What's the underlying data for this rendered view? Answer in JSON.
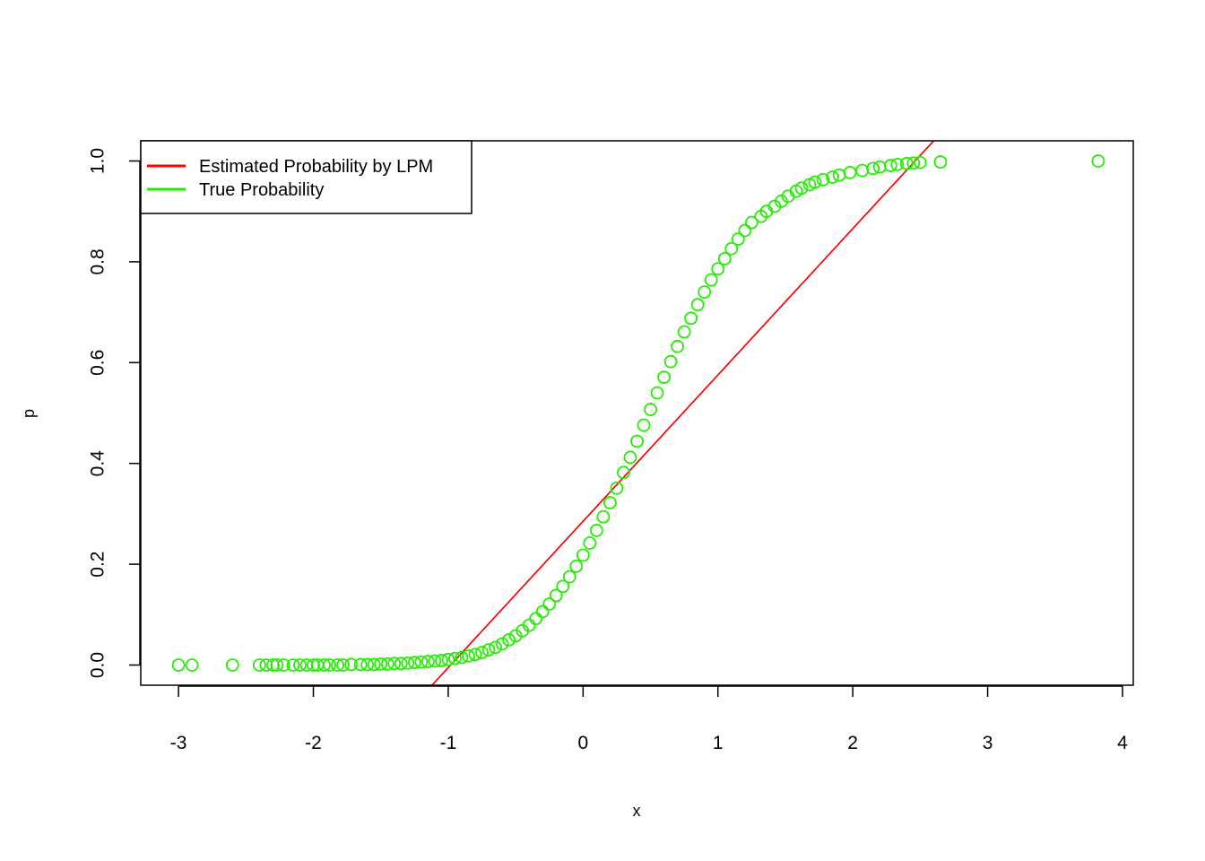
{
  "chart_data": {
    "type": "scatter",
    "title": "",
    "xlabel": "x",
    "ylabel": "p",
    "xlim": [
      -3.28,
      4.08
    ],
    "ylim": [
      -0.04,
      1.04
    ],
    "xticks": [
      -3,
      -2,
      -1,
      0,
      1,
      2,
      3,
      4
    ],
    "yticks": [
      0.0,
      0.2,
      0.4,
      0.6,
      0.8,
      1.0
    ],
    "xtick_labels": [
      "-3",
      "-2",
      "-1",
      "0",
      "1",
      "2",
      "3",
      "4"
    ],
    "ytick_labels": [
      "0.0",
      "0.2",
      "0.4",
      "0.6",
      "0.8",
      "1.0"
    ],
    "grid": false,
    "legend": {
      "position": "top-left",
      "items": [
        {
          "label": "Estimated Probability by LPM",
          "color": "#ff0000"
        },
        {
          "label": "True Probability",
          "color": "#22ee00"
        }
      ]
    },
    "series": [
      {
        "name": "True Probability",
        "kind": "scatter",
        "color": "#22ee00",
        "marker": "circle-open",
        "x": [
          -3.0,
          -2.9,
          -2.6,
          -2.4,
          -2.35,
          -2.3,
          -2.27,
          -2.22,
          -2.15,
          -2.1,
          -2.05,
          -2.0,
          -1.97,
          -1.92,
          -1.88,
          -1.82,
          -1.78,
          -1.72,
          -1.65,
          -1.6,
          -1.55,
          -1.5,
          -1.45,
          -1.4,
          -1.35,
          -1.3,
          -1.25,
          -1.2,
          -1.15,
          -1.1,
          -1.05,
          -1.0,
          -0.95,
          -0.9,
          -0.85,
          -0.8,
          -0.75,
          -0.7,
          -0.65,
          -0.6,
          -0.55,
          -0.5,
          -0.45,
          -0.4,
          -0.35,
          -0.3,
          -0.25,
          -0.2,
          -0.15,
          -0.1,
          -0.05,
          0.0,
          0.05,
          0.1,
          0.15,
          0.2,
          0.25,
          0.3,
          0.35,
          0.4,
          0.45,
          0.5,
          0.55,
          0.6,
          0.65,
          0.7,
          0.75,
          0.8,
          0.85,
          0.9,
          0.95,
          1.0,
          1.05,
          1.1,
          1.15,
          1.2,
          1.25,
          1.32,
          1.36,
          1.42,
          1.47,
          1.52,
          1.58,
          1.62,
          1.68,
          1.72,
          1.78,
          1.85,
          1.9,
          1.98,
          2.07,
          2.15,
          2.2,
          2.28,
          2.33,
          2.4,
          2.45,
          2.5,
          2.65,
          3.82
        ],
        "y": [
          0.0,
          0.0,
          0.0,
          0.0,
          0.0,
          0.0,
          0.0,
          0.0,
          0.0,
          0.0,
          0.0,
          0.0,
          0.0,
          0.0,
          0.0,
          0.0,
          0.0,
          0.001,
          0.001,
          0.001,
          0.001,
          0.002,
          0.002,
          0.003,
          0.003,
          0.004,
          0.005,
          0.006,
          0.007,
          0.008,
          0.009,
          0.011,
          0.013,
          0.015,
          0.018,
          0.021,
          0.025,
          0.03,
          0.035,
          0.042,
          0.05,
          0.058,
          0.068,
          0.079,
          0.092,
          0.106,
          0.121,
          0.138,
          0.156,
          0.175,
          0.196,
          0.218,
          0.242,
          0.267,
          0.294,
          0.322,
          0.351,
          0.382,
          0.412,
          0.444,
          0.476,
          0.507,
          0.54,
          0.571,
          0.602,
          0.632,
          0.661,
          0.688,
          0.715,
          0.74,
          0.764,
          0.786,
          0.806,
          0.826,
          0.845,
          0.862,
          0.878,
          0.89,
          0.9,
          0.91,
          0.92,
          0.93,
          0.94,
          0.946,
          0.953,
          0.958,
          0.963,
          0.968,
          0.972,
          0.977,
          0.981,
          0.985,
          0.988,
          0.991,
          0.993,
          0.995,
          0.996,
          0.997,
          0.998,
          1.0
        ]
      },
      {
        "name": "Estimated Probability by LPM",
        "kind": "line",
        "color": "#ff0000",
        "x": [
          -1.12,
          2.6
        ],
        "y": [
          -0.04,
          1.04
        ]
      }
    ]
  }
}
